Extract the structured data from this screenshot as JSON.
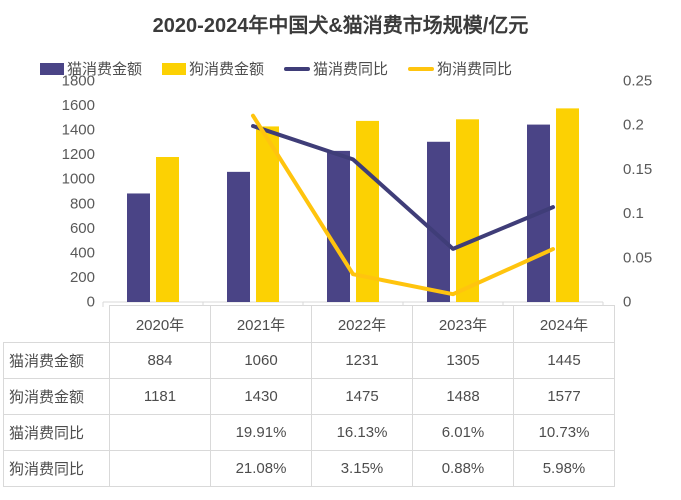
{
  "title": "2020-2024年中国犬&猫消费市场规模/亿元",
  "legend": {
    "items": [
      {
        "label": "猫消费金额",
        "type": "bar",
        "color": "#4A4486"
      },
      {
        "label": "狗消费金额",
        "type": "bar",
        "color": "#FCD103"
      },
      {
        "label": "猫消费同比",
        "type": "line",
        "color": "#3F3D78"
      },
      {
        "label": "狗消费同比",
        "type": "line",
        "color": "#FFC40E"
      }
    ]
  },
  "chart_data": {
    "type": "bar+line combo",
    "title": "2020-2024年中国犬&猫消费市场规模/亿元",
    "categories": [
      "2020年",
      "2021年",
      "2022年",
      "2023年",
      "2024年"
    ],
    "bar_series": [
      {
        "name": "猫消费金额",
        "axis": "left",
        "color": "#4A4486",
        "values": [
          884,
          1060,
          1231,
          1305,
          1445
        ]
      },
      {
        "name": "狗消费金额",
        "axis": "left",
        "color": "#FCD103",
        "values": [
          1181,
          1430,
          1475,
          1488,
          1577
        ]
      }
    ],
    "line_series": [
      {
        "name": "猫消费同比",
        "axis": "right",
        "color": "#3F3D78",
        "values": [
          null,
          0.1991,
          0.1613,
          0.0601,
          0.1073
        ]
      },
      {
        "name": "狗消费同比",
        "axis": "right",
        "color": "#FFC40E",
        "values": [
          null,
          0.2108,
          0.0315,
          0.0088,
          0.0598
        ]
      }
    ],
    "left_axis": {
      "min": 0,
      "max": 1800,
      "ticks": [
        0,
        200,
        400,
        600,
        800,
        1000,
        1200,
        1400,
        1600,
        1800
      ]
    },
    "right_axis": {
      "min": 0,
      "max": 0.25,
      "ticks": [
        0,
        0.05,
        0.1,
        0.15,
        0.2,
        0.25
      ]
    },
    "grid": "off",
    "legend_position": "top"
  },
  "table": {
    "columns": [
      "2020年",
      "2021年",
      "2022年",
      "2023年",
      "2024年"
    ],
    "rows": [
      {
        "label": "猫消费金额",
        "values": [
          "884",
          "1060",
          "1231",
          "1305",
          "1445"
        ]
      },
      {
        "label": "狗消费金额",
        "values": [
          "1181",
          "1430",
          "1475",
          "1488",
          "1577"
        ]
      },
      {
        "label": "猫消费同比",
        "values": [
          "",
          "19.91%",
          "16.13%",
          "6.01%",
          "10.73%"
        ]
      },
      {
        "label": "狗消费同比",
        "values": [
          "",
          "21.08%",
          "3.15%",
          "0.88%",
          "5.98%"
        ]
      }
    ]
  },
  "colors": {
    "title_text": "#3B3B3B",
    "axis_text": "#595959",
    "table_text": "#4D4D4D",
    "border": "#D9D9D9"
  }
}
